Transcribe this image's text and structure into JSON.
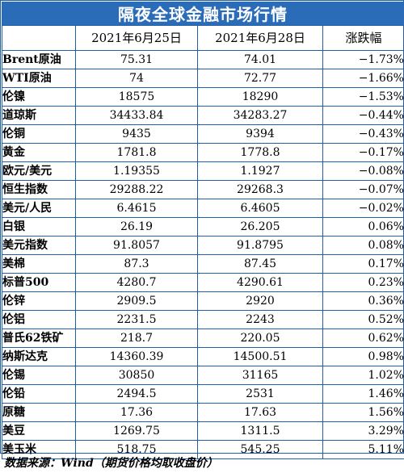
{
  "title": "隔夜全球金融市场行情",
  "headers": [
    "",
    "2021年6月25日",
    "2021年6月28日",
    "涨跌幅"
  ],
  "rows": [
    [
      "Brent原油",
      "75.31",
      "74.01",
      "−1.73%"
    ],
    [
      "WTI原油",
      "74",
      "72.77",
      "−1.66%"
    ],
    [
      "伦镍",
      "18575",
      "18290",
      "−1.53%"
    ],
    [
      "道琼斯",
      "34433.84",
      "34283.27",
      "−0.44%"
    ],
    [
      "伦铜",
      "9435",
      "9394",
      "−0.43%"
    ],
    [
      "黄金",
      "1781.8",
      "1778.8",
      "−0.17%"
    ],
    [
      "欧元/美元",
      "1.19355",
      "1.1927",
      "−0.08%"
    ],
    [
      "恒生指数",
      "29288.22",
      "29268.3",
      "−0.07%"
    ],
    [
      "美元/人民",
      "6.4615",
      "6.4605",
      "−0.02%"
    ],
    [
      "白银",
      "26.19",
      "26.205",
      "0.06%"
    ],
    [
      "美元指数",
      "91.8057",
      "91.8795",
      "0.08%"
    ],
    [
      "美棉",
      "87.3",
      "87.45",
      "0.17%"
    ],
    [
      "标普500",
      "4280.7",
      "4290.61",
      "0.23%"
    ],
    [
      "伦锌",
      "2909.5",
      "2920",
      "0.36%"
    ],
    [
      "伦铝",
      "2231.5",
      "2243",
      "0.52%"
    ],
    [
      "普氏62铁矿",
      "218.7",
      "220.05",
      "0.62%"
    ],
    [
      "纳斯达克",
      "14360.39",
      "14500.51",
      "0.98%"
    ],
    [
      "伦锡",
      "30850",
      "31165",
      "1.02%"
    ],
    [
      "伦铅",
      "2494.5",
      "2531",
      "1.46%"
    ],
    [
      "原糖",
      "17.36",
      "17.63",
      "1.56%"
    ],
    [
      "美豆",
      "1269.75",
      "1311.5",
      "3.29%"
    ],
    [
      "美玉米",
      "518.75",
      "545.25",
      "5.11%"
    ]
  ],
  "footer": "数据来源：Wind（期货价格均取收盘价）",
  "colors": {
    "title_bg": "#2b6cb8",
    "border": "#1f5fa8"
  }
}
